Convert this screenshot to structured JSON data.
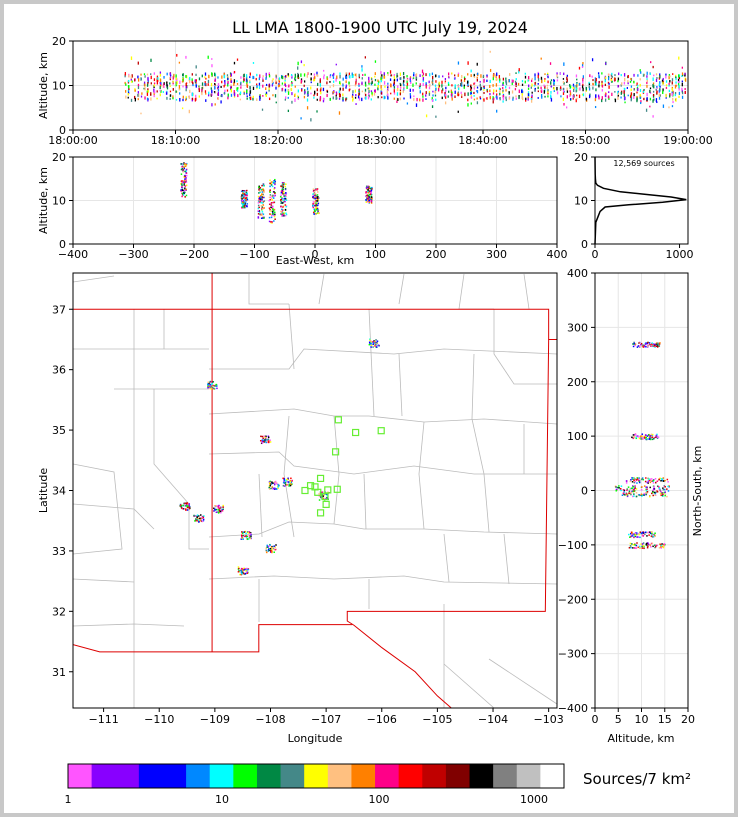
{
  "title": "LL LMA 1800-1900 UTC July 19, 2024",
  "chart_data": [
    {
      "id": "altitude-time",
      "type": "scatter",
      "xlabel": "",
      "ylabel": "Altitude, km",
      "ylim": [
        0,
        20
      ],
      "yticks": [
        "0",
        "10",
        "20"
      ],
      "xticks": [
        "18:00:00",
        "18:10:00",
        "18:20:00",
        "18:30:00",
        "18:40:00",
        "18:50:00",
        "19:00:00"
      ],
      "xlim_minutes": [
        0,
        60
      ],
      "active_from_minute": 5,
      "grid": true
    },
    {
      "id": "altitude-eastwest",
      "type": "scatter",
      "xlabel": "East-West, km",
      "ylabel": "Altitude, km",
      "xlim": [
        -400,
        400
      ],
      "ylim": [
        0,
        20
      ],
      "xticks": [
        "−400",
        "−300",
        "−200",
        "−100",
        "0",
        "100",
        "200",
        "300",
        "400"
      ],
      "yticks": [
        "0",
        "10",
        "20"
      ],
      "clusters": [
        {
          "x": -218,
          "y": 15,
          "spread_y": 4
        },
        {
          "x": -118,
          "y": 10.5,
          "spread_y": 2
        },
        {
          "x": -90,
          "y": 10,
          "spread_y": 4
        },
        {
          "x": -72,
          "y": 10,
          "spread_y": 5
        },
        {
          "x": -53,
          "y": 10.5,
          "spread_y": 4
        },
        {
          "x": 0,
          "y": 10,
          "spread_y": 3
        },
        {
          "x": 88,
          "y": 11.5,
          "spread_y": 2
        }
      ]
    },
    {
      "id": "altitude-histogram",
      "type": "line",
      "annotation": "12,569 sources",
      "xlim": [
        0,
        1100
      ],
      "ylim": [
        0,
        20
      ],
      "xticks": [
        "0",
        "1000"
      ],
      "yticks": [
        "0",
        "10",
        "20"
      ],
      "points": [
        [
          0,
          0
        ],
        [
          10,
          5
        ],
        [
          40,
          6.5
        ],
        [
          60,
          7.5
        ],
        [
          120,
          8.5
        ],
        [
          400,
          9
        ],
        [
          800,
          9.6
        ],
        [
          1080,
          10.2
        ],
        [
          900,
          10.8
        ],
        [
          600,
          11.4
        ],
        [
          300,
          12
        ],
        [
          100,
          12.8
        ],
        [
          30,
          13.5
        ],
        [
          10,
          14
        ],
        [
          5,
          15
        ],
        [
          2,
          16
        ],
        [
          0,
          20
        ]
      ]
    },
    {
      "id": "plan-view",
      "type": "scatter",
      "xlabel": "Longitude",
      "ylabel": "Latitude",
      "xlim": [
        -111.55,
        -102.85
      ],
      "ylim": [
        30.4,
        37.6
      ],
      "xticks": [
        "−111",
        "−110",
        "−109",
        "−108",
        "−107",
        "−106",
        "−105",
        "−104",
        "−103"
      ],
      "yticks": [
        "31",
        "32",
        "33",
        "34",
        "35",
        "36",
        "37"
      ],
      "clusters": [
        {
          "lon": -106.15,
          "lat": 36.45
        },
        {
          "lon": -109.05,
          "lat": 35.75
        },
        {
          "lon": -108.1,
          "lat": 34.85
        },
        {
          "lon": -107.95,
          "lat": 34.1
        },
        {
          "lon": -107.7,
          "lat": 34.15
        },
        {
          "lon": -107.05,
          "lat": 33.92
        },
        {
          "lon": -109.55,
          "lat": 33.75
        },
        {
          "lon": -109.3,
          "lat": 33.55
        },
        {
          "lon": -108.45,
          "lat": 33.27
        },
        {
          "lon": -108.0,
          "lat": 33.05
        },
        {
          "lon": -108.5,
          "lat": 32.68
        },
        {
          "lon": -108.95,
          "lat": 33.7
        }
      ],
      "stations": [
        [
          -106.78,
          35.17
        ],
        [
          -106.47,
          34.96
        ],
        [
          -106.01,
          34.99
        ],
        [
          -106.83,
          34.64
        ],
        [
          -107.1,
          34.2
        ],
        [
          -107.28,
          34.08
        ],
        [
          -107.38,
          34.0
        ],
        [
          -107.15,
          33.97
        ],
        [
          -106.97,
          34.01
        ],
        [
          -106.8,
          34.02
        ],
        [
          -107.02,
          33.9
        ],
        [
          -107.0,
          33.77
        ],
        [
          -107.1,
          33.63
        ],
        [
          -107.2,
          34.06
        ]
      ]
    },
    {
      "id": "altitude-northsouth",
      "type": "scatter",
      "xlabel": "Altitude, km",
      "ylabel": "North-South, km",
      "xlim": [
        0,
        20
      ],
      "ylim": [
        -400,
        400
      ],
      "xticks": [
        "0",
        "5",
        "10",
        "15",
        "20"
      ],
      "yticks": [
        "−400",
        "−300",
        "−200",
        "−100",
        "0",
        "100",
        "200",
        "300",
        "400"
      ],
      "clusters": [
        {
          "y": 270,
          "x": 11,
          "spread_x": 3
        },
        {
          "y": 100,
          "x": 10.5,
          "spread_x": 3
        },
        {
          "y": 20,
          "x": 11,
          "spread_x": 5
        },
        {
          "y": 5,
          "x": 10,
          "spread_x": 6
        },
        {
          "y": -5,
          "x": 10.5,
          "spread_x": 5
        },
        {
          "y": -80,
          "x": 10,
          "spread_x": 3
        },
        {
          "y": -100,
          "x": 11,
          "spread_x": 4
        }
      ]
    }
  ],
  "colorbar": {
    "label": "Sources/7 km²",
    "ticks": [
      "1",
      "10",
      "100",
      "1000"
    ],
    "colors": [
      "#ff55ff",
      "#8800ff",
      "#8800ff",
      "#0000ff",
      "#0000ff",
      "#0088ff",
      "#00ffff",
      "#00ff00",
      "#008844",
      "#448888",
      "#ffff00",
      "#ffc080",
      "#ff8000",
      "#ff0088",
      "#ff0000",
      "#c00000",
      "#800000",
      "#000000",
      "#808080",
      "#c0c0c0",
      "#ffffff"
    ]
  },
  "palette": [
    "#ff55ff",
    "#8800ff",
    "#0000ff",
    "#0088ff",
    "#00ffff",
    "#00ff00",
    "#008844",
    "#448888",
    "#ffff00",
    "#ffc080",
    "#ff8000",
    "#ff0088",
    "#ff0000",
    "#c00000",
    "#000000"
  ],
  "map_colors": {
    "state_border": "#dd0000",
    "county_lines": "#bbbbbb",
    "station_marker": "#66ee33"
  }
}
